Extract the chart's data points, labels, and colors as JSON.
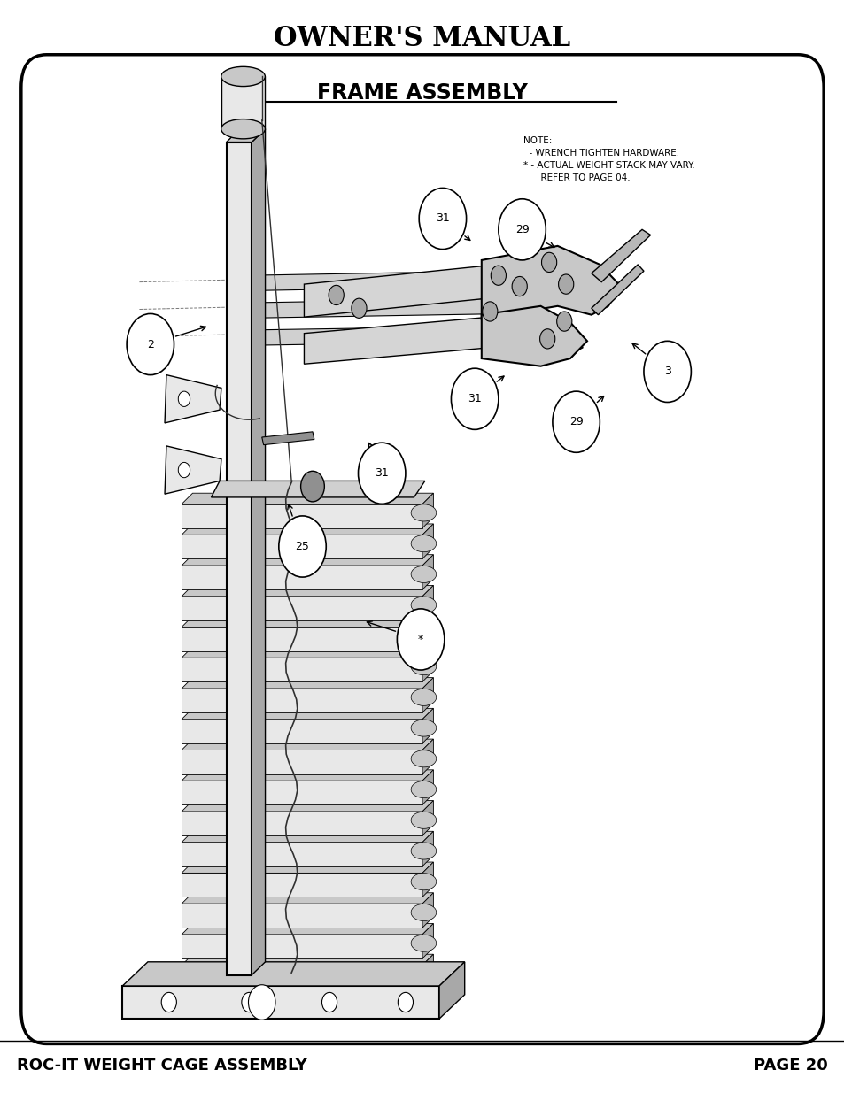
{
  "title": "OWNER'S MANUAL",
  "section_title": "FRAME ASSEMBLY",
  "footer_left": "ROC-IT WEIGHT CAGE ASSEMBLY",
  "footer_right": "PAGE 20",
  "note_lines": [
    "NOTE:",
    "  - WRENCH TIGHTEN HARDWARE.",
    "* - ACTUAL WEIGHT STACK MAY VARY.",
    "      REFER TO PAGE 04."
  ],
  "bg_color": "#ffffff",
  "border_color": "#000000",
  "text_color": "#000000"
}
